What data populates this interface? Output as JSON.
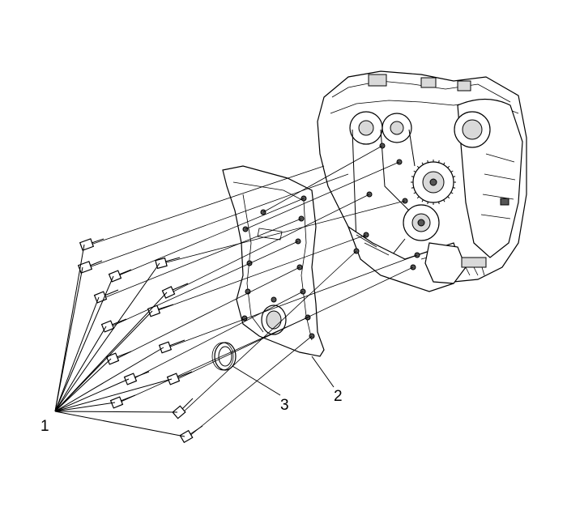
{
  "diagram": {
    "callouts": [
      {
        "id": "c1",
        "text": "1"
      },
      {
        "id": "c2",
        "text": "2"
      },
      {
        "id": "c3",
        "text": "3"
      }
    ]
  }
}
